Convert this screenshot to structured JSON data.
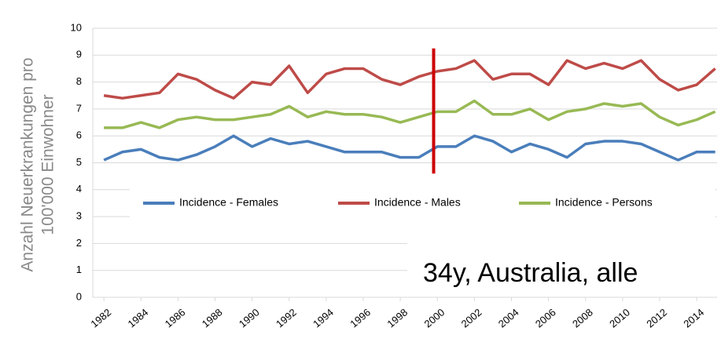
{
  "chart_data": {
    "type": "line",
    "y_label": [
      "Anzahl Neuerkrankungen pro",
      "100'000 Einwohner"
    ],
    "annotation": "34y, Australia, alle",
    "x": [
      1982,
      1983,
      1984,
      1985,
      1986,
      1987,
      1988,
      1989,
      1990,
      1991,
      1992,
      1993,
      1994,
      1995,
      1996,
      1997,
      1998,
      1999,
      2000,
      2001,
      2002,
      2003,
      2004,
      2005,
      2006,
      2007,
      2008,
      2009,
      2010,
      2011,
      2012,
      2013,
      2014,
      2015
    ],
    "xlim": [
      1981.4,
      2015.1
    ],
    "xticks": [
      1982,
      1984,
      1986,
      1988,
      1990,
      1992,
      1994,
      1996,
      1998,
      2000,
      2002,
      2004,
      2006,
      2008,
      2010,
      2012,
      2014
    ],
    "ylim": [
      0,
      10
    ],
    "yticks": [
      0,
      1,
      2,
      3,
      4,
      5,
      6,
      7,
      8,
      9,
      10
    ],
    "grid": true,
    "legend_position": "middle",
    "series": [
      {
        "name": "Incidence - Females",
        "color": "#4a7ebb",
        "values": [
          5.1,
          5.4,
          5.5,
          5.2,
          5.1,
          5.3,
          5.6,
          6.0,
          5.6,
          5.9,
          5.7,
          5.8,
          5.6,
          5.4,
          5.4,
          5.4,
          5.2,
          5.2,
          5.6,
          5.6,
          6.0,
          5.8,
          5.4,
          5.7,
          5.5,
          5.2,
          5.7,
          5.8,
          5.8,
          5.7,
          5.4,
          5.1,
          5.4,
          5.4
        ]
      },
      {
        "name": "Incidence - Males",
        "color": "#be4b48",
        "values": [
          7.5,
          7.4,
          7.5,
          7.6,
          8.3,
          8.1,
          7.7,
          7.4,
          8.0,
          7.9,
          8.6,
          7.6,
          8.3,
          8.5,
          8.5,
          8.1,
          7.9,
          8.2,
          8.4,
          8.5,
          8.8,
          8.1,
          8.3,
          8.3,
          7.9,
          8.8,
          8.5,
          8.7,
          8.5,
          8.8,
          8.1,
          7.7,
          7.9,
          8.5
        ]
      },
      {
        "name": "Incidence - Persons",
        "color": "#98b954",
        "values": [
          6.3,
          6.3,
          6.5,
          6.3,
          6.6,
          6.7,
          6.6,
          6.6,
          6.7,
          6.8,
          7.1,
          6.7,
          6.9,
          6.8,
          6.8,
          6.7,
          6.5,
          6.7,
          6.9,
          6.9,
          7.3,
          6.8,
          6.8,
          7.0,
          6.6,
          6.9,
          7.0,
          7.2,
          7.1,
          7.2,
          6.7,
          6.4,
          6.6,
          6.9
        ]
      }
    ],
    "vline": {
      "x": 1999.8,
      "ymin": 4.6,
      "ymax": 9.25,
      "color": "#cc0000"
    }
  }
}
